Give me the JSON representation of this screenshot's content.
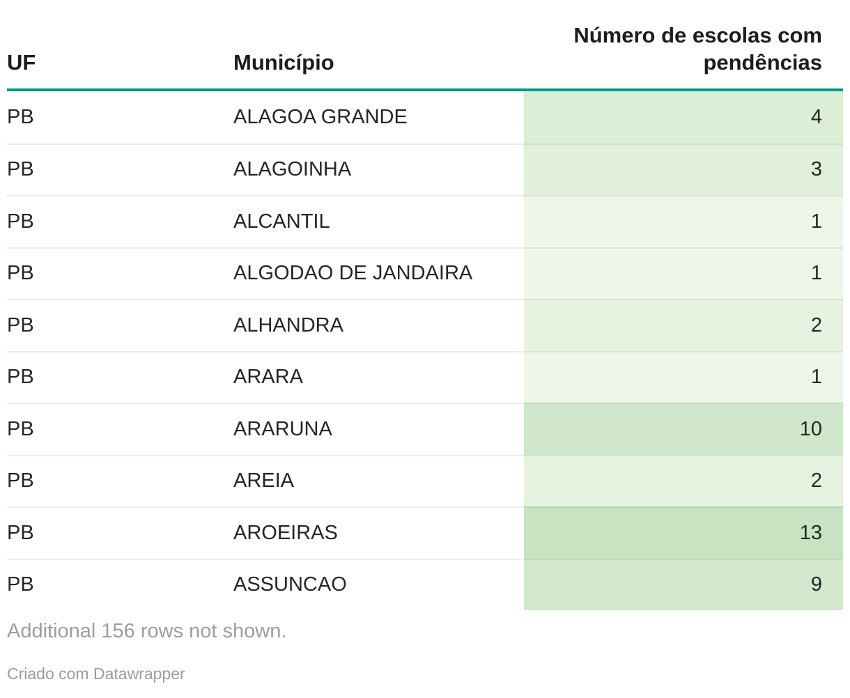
{
  "table": {
    "columns": [
      {
        "label": "UF",
        "align": "left"
      },
      {
        "label": "Município",
        "align": "left"
      },
      {
        "label": "Número de escolas com pendências",
        "align": "right"
      }
    ],
    "rows": [
      {
        "uf": "PB",
        "municipio": "ALAGOA GRANDE",
        "value": "4",
        "bg": "#dceed6"
      },
      {
        "uf": "PB",
        "municipio": "ALAGOINHA",
        "value": "3",
        "bg": "#e0f0da"
      },
      {
        "uf": "PB",
        "municipio": "ALCANTIL",
        "value": "1",
        "bg": "#edf6e8"
      },
      {
        "uf": "PB",
        "municipio": "ALGODAO DE JANDAIRA",
        "value": "1",
        "bg": "#edf6e8"
      },
      {
        "uf": "PB",
        "municipio": "ALHANDRA",
        "value": "2",
        "bg": "#e7f3e1"
      },
      {
        "uf": "PB",
        "municipio": "ARARA",
        "value": "1",
        "bg": "#edf6e8"
      },
      {
        "uf": "PB",
        "municipio": "ARARUNA",
        "value": "10",
        "bg": "#d0e7cb"
      },
      {
        "uf": "PB",
        "municipio": "AREIA",
        "value": "2",
        "bg": "#e7f3e1"
      },
      {
        "uf": "PB",
        "municipio": "AROEIRAS",
        "value": "13",
        "bg": "#c8e3c2"
      },
      {
        "uf": "PB",
        "municipio": "ASSUNCAO",
        "value": "9",
        "bg": "#d3e9ce"
      }
    ],
    "note": "Additional 156 rows not shown.",
    "attribution": "Criado com Datawrapper"
  },
  "colors": {
    "header_rule": "#0b9384",
    "row_divider": "#ebebeb",
    "text": "#252525",
    "muted_text": "#9d9d9d"
  },
  "chart_data": {
    "type": "table",
    "columns": [
      "UF",
      "Município",
      "Número de escolas com pendências"
    ],
    "rows": [
      [
        "PB",
        "ALAGOA GRANDE",
        4
      ],
      [
        "PB",
        "ALAGOINHA",
        3
      ],
      [
        "PB",
        "ALCANTIL",
        1
      ],
      [
        "PB",
        "ALGODAO DE JANDAIRA",
        1
      ],
      [
        "PB",
        "ALHANDRA",
        2
      ],
      [
        "PB",
        "ARARA",
        1
      ],
      [
        "PB",
        "ARARUNA",
        10
      ],
      [
        "PB",
        "AREIA",
        2
      ],
      [
        "PB",
        "AROEIRAS",
        13
      ],
      [
        "PB",
        "ASSUNCAO",
        9
      ]
    ],
    "heatmap_column": "Número de escolas com pendências",
    "heatmap_palette": "sequential-greens",
    "note": "Additional 156 rows not shown.",
    "attribution": "Criado com Datawrapper"
  }
}
